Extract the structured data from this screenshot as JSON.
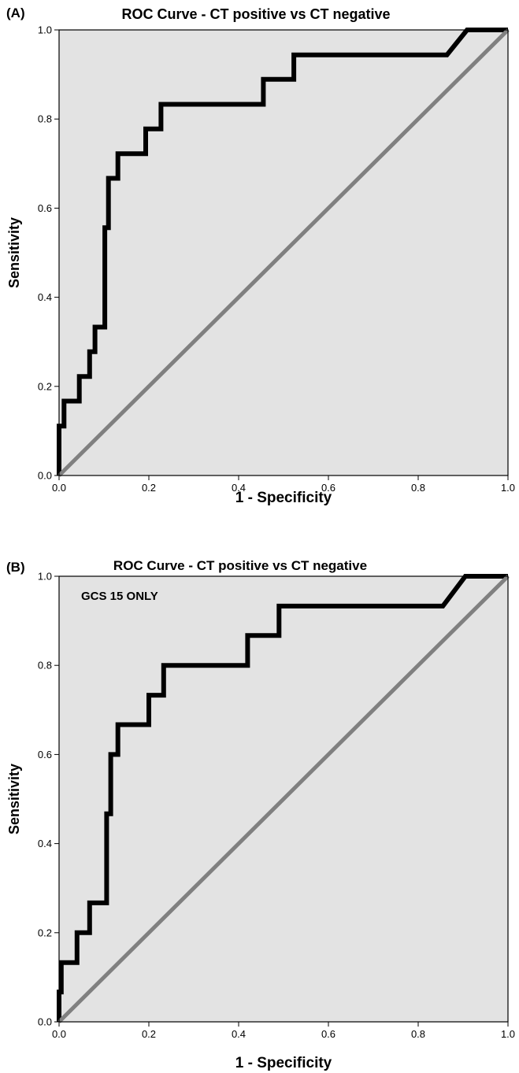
{
  "chart_data": [
    {
      "type": "line",
      "panel_label": "(A)",
      "title": "ROC Curve - CT positive vs CT negative",
      "annotation": "",
      "xlabel": "1 - Specificity",
      "ylabel": "Sensitivity",
      "xlim": [
        0,
        1
      ],
      "ylim": [
        0,
        1
      ],
      "x_ticks": [
        "0.0",
        "0.2",
        "0.4",
        "0.6",
        "0.8",
        "1.0"
      ],
      "y_ticks": [
        "0.0",
        "0.2",
        "0.4",
        "0.6",
        "0.8",
        "1.0"
      ],
      "grid": false,
      "background": "#e3e3e3",
      "series": [
        {
          "role": "roc",
          "color": "#000000",
          "points": [
            [
              0,
              0
            ],
            [
              0,
              0.111
            ],
            [
              0.011,
              0.111
            ],
            [
              0.011,
              0.167
            ],
            [
              0.045,
              0.167
            ],
            [
              0.045,
              0.222
            ],
            [
              0.068,
              0.222
            ],
            [
              0.068,
              0.278
            ],
            [
              0.08,
              0.278
            ],
            [
              0.08,
              0.333
            ],
            [
              0.102,
              0.333
            ],
            [
              0.102,
              0.556
            ],
            [
              0.11,
              0.556
            ],
            [
              0.11,
              0.667
            ],
            [
              0.131,
              0.667
            ],
            [
              0.131,
              0.722
            ],
            [
              0.193,
              0.722
            ],
            [
              0.193,
              0.778
            ],
            [
              0.227,
              0.778
            ],
            [
              0.227,
              0.833
            ],
            [
              0.455,
              0.833
            ],
            [
              0.455,
              0.889
            ],
            [
              0.523,
              0.889
            ],
            [
              0.523,
              0.944
            ],
            [
              0.864,
              0.944
            ],
            [
              0.909,
              1.0
            ],
            [
              1.0,
              1.0
            ]
          ]
        },
        {
          "role": "reference",
          "color": "#808080",
          "points": [
            [
              0,
              0
            ],
            [
              1,
              1
            ]
          ]
        }
      ]
    },
    {
      "type": "line",
      "panel_label": "(B)",
      "title": "ROC Curve - CT positive vs CT negative",
      "annotation": "GCS 15 ONLY",
      "xlabel": "1 - Specificity",
      "ylabel": "Sensitivity",
      "xlim": [
        0,
        1
      ],
      "ylim": [
        0,
        1
      ],
      "x_ticks": [
        "0.0",
        "0.2",
        "0.4",
        "0.6",
        "0.8",
        "1.0"
      ],
      "y_ticks": [
        "0.0",
        "0.2",
        "0.4",
        "0.6",
        "0.8",
        "1.0"
      ],
      "grid": false,
      "background": "#e3e3e3",
      "series": [
        {
          "role": "roc",
          "color": "#000000",
          "points": [
            [
              0,
              0
            ],
            [
              0,
              0.067
            ],
            [
              0.005,
              0.067
            ],
            [
              0.005,
              0.133
            ],
            [
              0.04,
              0.133
            ],
            [
              0.04,
              0.2
            ],
            [
              0.068,
              0.2
            ],
            [
              0.068,
              0.267
            ],
            [
              0.106,
              0.267
            ],
            [
              0.106,
              0.467
            ],
            [
              0.115,
              0.467
            ],
            [
              0.115,
              0.6
            ],
            [
              0.131,
              0.6
            ],
            [
              0.131,
              0.667
            ],
            [
              0.2,
              0.667
            ],
            [
              0.2,
              0.733
            ],
            [
              0.233,
              0.733
            ],
            [
              0.233,
              0.8
            ],
            [
              0.42,
              0.8
            ],
            [
              0.42,
              0.867
            ],
            [
              0.49,
              0.867
            ],
            [
              0.49,
              0.933
            ],
            [
              0.855,
              0.933
            ],
            [
              0.905,
              1.0
            ],
            [
              1.0,
              1.0
            ]
          ]
        },
        {
          "role": "reference",
          "color": "#808080",
          "points": [
            [
              0,
              0
            ],
            [
              1,
              1
            ]
          ]
        }
      ]
    }
  ]
}
